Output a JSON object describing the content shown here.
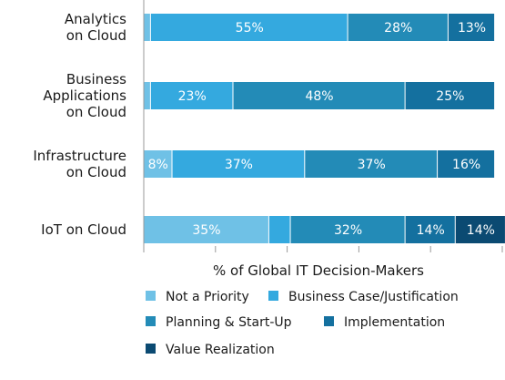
{
  "chart_data": {
    "type": "bar",
    "orientation": "horizontal",
    "stacked": true,
    "xlabel": "% of Global IT Decision-Makers",
    "xlim": [
      0,
      100
    ],
    "categories": [
      [
        "Analytics",
        "on Cloud"
      ],
      [
        "Business",
        "Applications",
        "on Cloud"
      ],
      [
        "Infrastructure",
        "on Cloud"
      ],
      [
        "IoT on Cloud"
      ]
    ],
    "series": [
      {
        "name": "Not a Priority",
        "color": "#6fc1e6",
        "values": [
          2,
          2,
          8,
          35
        ],
        "labels": [
          "",
          "",
          "8%",
          "35%"
        ]
      },
      {
        "name": "Business Case/Justification",
        "color": "#34a9df",
        "values": [
          55,
          23,
          37,
          6
        ],
        "labels": [
          "55%",
          "23%",
          "37%",
          ""
        ]
      },
      {
        "name": "Planning & Start-Up",
        "color": "#238bb7",
        "values": [
          28,
          48,
          37,
          32
        ],
        "labels": [
          "28%",
          "48%",
          "37%",
          "32%"
        ]
      },
      {
        "name": "Implementation",
        "color": "#14709f",
        "values": [
          13,
          25,
          16,
          14
        ],
        "labels": [
          "13%",
          "25%",
          "16%",
          "14%"
        ]
      },
      {
        "name": "Value Realization",
        "color": "#0b4a72",
        "values": [
          0,
          0,
          0,
          14
        ],
        "labels": [
          "",
          "",
          "",
          "14%"
        ]
      }
    ],
    "legend_position": "bottom",
    "grid": false
  }
}
